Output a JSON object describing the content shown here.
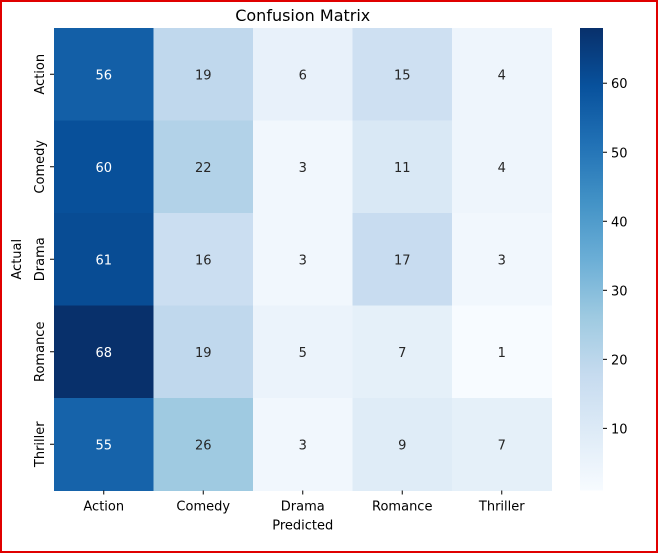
{
  "chart_data": {
    "type": "heatmap",
    "title": "Confusion Matrix",
    "xlabel": "Predicted",
    "ylabel": "Actual",
    "x_categories": [
      "Action",
      "Comedy",
      "Drama",
      "Romance",
      "Thriller"
    ],
    "y_categories": [
      "Action",
      "Comedy",
      "Drama",
      "Romance",
      "Thriller"
    ],
    "values": [
      [
        56,
        19,
        6,
        15,
        4
      ],
      [
        60,
        22,
        3,
        11,
        4
      ],
      [
        61,
        16,
        3,
        17,
        3
      ],
      [
        68,
        19,
        5,
        7,
        1
      ],
      [
        55,
        26,
        3,
        9,
        7
      ]
    ],
    "colormap": "Blues",
    "vmin": 1,
    "vmax": 68,
    "colorbar_ticks": [
      10,
      20,
      30,
      40,
      50,
      60
    ],
    "annotated": true
  }
}
